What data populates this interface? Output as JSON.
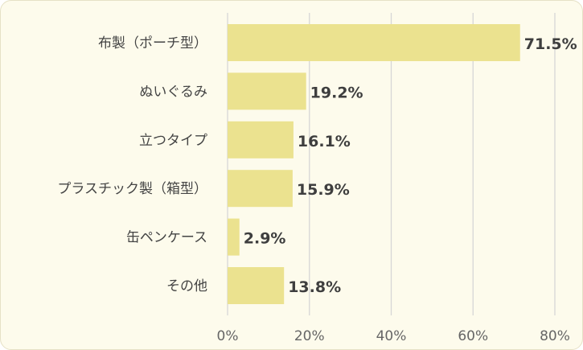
{
  "chart_data": {
    "type": "bar",
    "orientation": "horizontal",
    "categories": [
      "布製（ポーチ型）",
      "ぬいぐるみ",
      "立つタイプ",
      "プラスチック製（箱型）",
      "缶ペンケース",
      "その他"
    ],
    "values": [
      71.5,
      19.2,
      16.1,
      15.9,
      2.9,
      13.8
    ],
    "value_labels": [
      "71.5%",
      "19.2%",
      "16.1%",
      "15.9%",
      "2.9%",
      "13.8%"
    ],
    "xlim": [
      0,
      80
    ],
    "x_ticks": [
      0,
      20,
      40,
      60,
      80
    ],
    "x_tick_labels": [
      "0%",
      "20%",
      "40%",
      "60%",
      "80%"
    ],
    "grid": "vertical",
    "legend": "none",
    "colors": {
      "bar": "#ebe28f",
      "grid": "#d6d6d6",
      "background": "#fdfbec"
    }
  }
}
